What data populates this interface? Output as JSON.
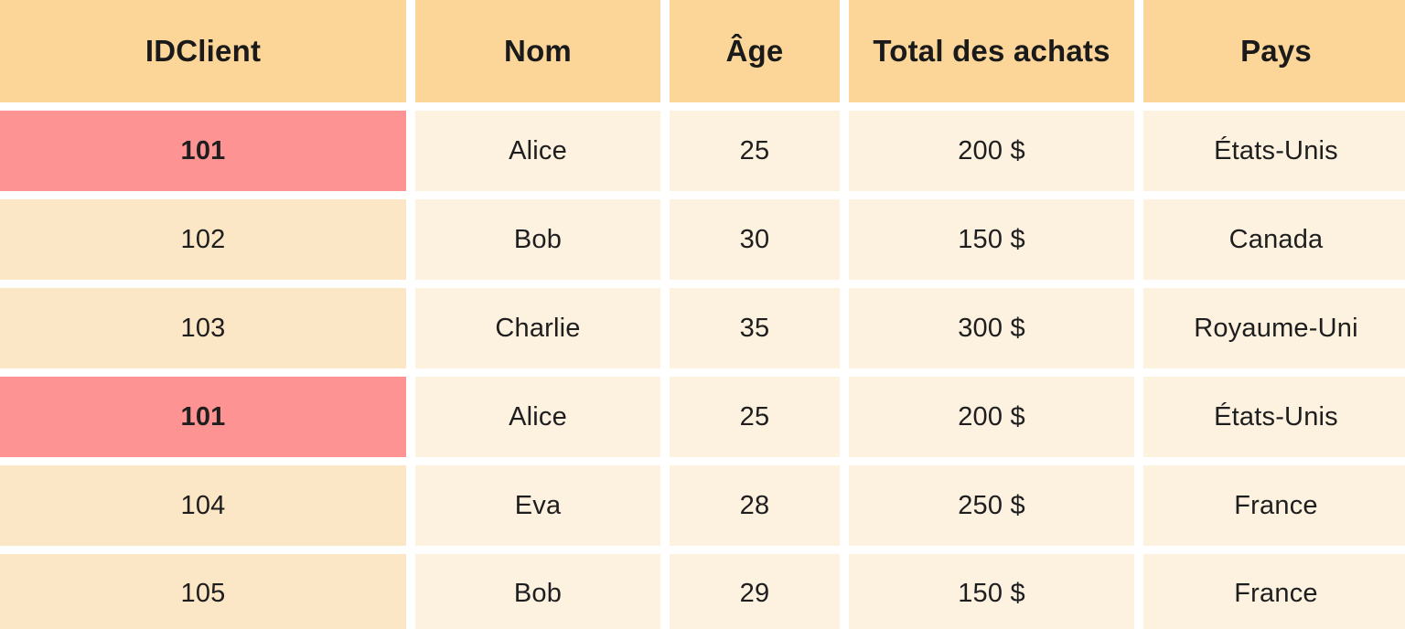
{
  "table": {
    "headers": [
      "IDClient",
      "Nom",
      "Âge",
      "Total des achats",
      "Pays"
    ],
    "rows": [
      {
        "id": "101",
        "nom": "Alice",
        "age": "25",
        "total": "200 $",
        "pays": "États-Unis",
        "duplicate": true
      },
      {
        "id": "102",
        "nom": "Bob",
        "age": "30",
        "total": "150 $",
        "pays": "Canada",
        "duplicate": false
      },
      {
        "id": "103",
        "nom": "Charlie",
        "age": "35",
        "total": "300 $",
        "pays": "Royaume-Uni",
        "duplicate": false
      },
      {
        "id": "101",
        "nom": "Alice",
        "age": "25",
        "total": "200 $",
        "pays": "États-Unis",
        "duplicate": true
      },
      {
        "id": "104",
        "nom": "Eva",
        "age": "28",
        "total": "250 $",
        "pays": "France",
        "duplicate": false
      },
      {
        "id": "105",
        "nom": "Bob",
        "age": "29",
        "total": "150 $",
        "pays": "France",
        "duplicate": false
      }
    ]
  },
  "colors": {
    "header_bg": "#fcd699",
    "cell_bg": "#fdf1df",
    "id_col_bg": "#fbe6c6",
    "duplicate_highlight": "#fe9393"
  }
}
